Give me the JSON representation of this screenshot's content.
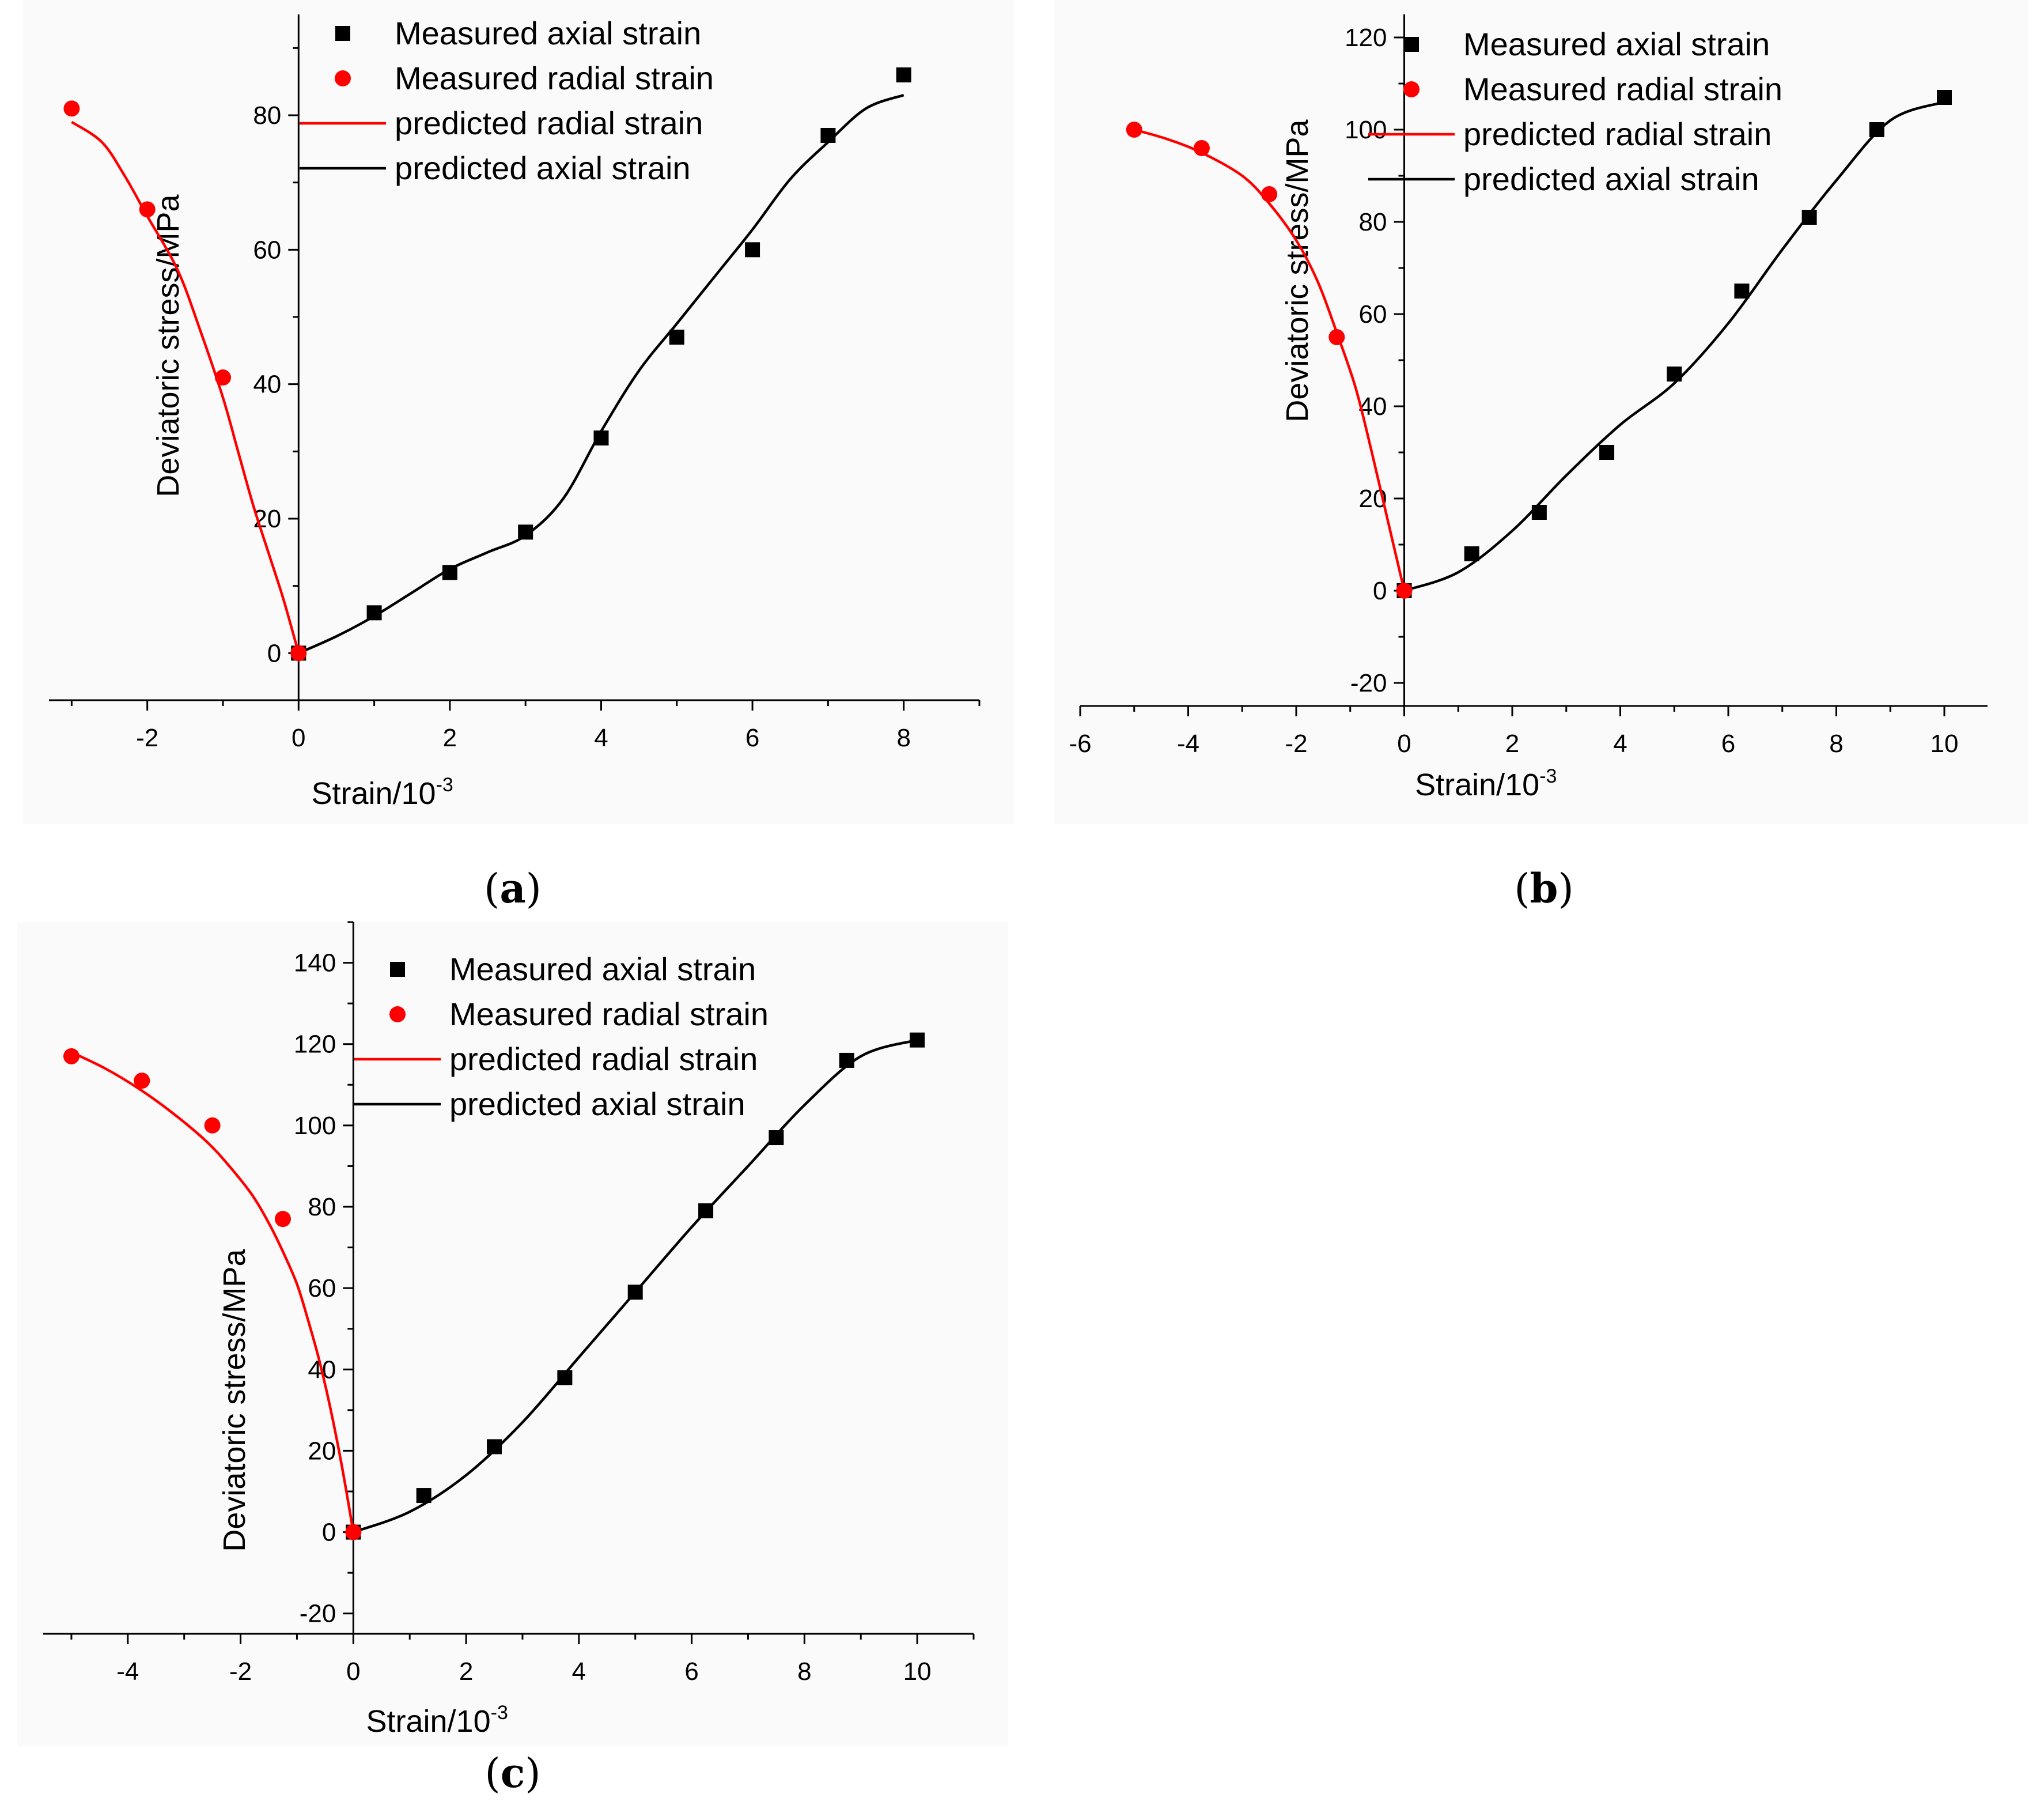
{
  "colors": {
    "axial": "#000000",
    "radial": "#ff0000",
    "text": "#000000",
    "panel_bg": "#fafafa"
  },
  "chart_data": [
    {
      "panel": "a",
      "type": "scatter",
      "caption_letter": "a",
      "xlabel": "Strain/10",
      "xlabel_sup": "-3",
      "ylabel": "Deviatoric stress/MPa",
      "xlim": [
        -3.3,
        9.0
      ],
      "ylim": [
        -7,
        95
      ],
      "xticks": [
        -2,
        0,
        2,
        4,
        6,
        8
      ],
      "yticks": [
        0,
        20,
        40,
        60,
        80
      ],
      "legend": {
        "measured_axial": "Measured axial strain",
        "measured_radial": "Measured radial strain",
        "predicted_radial": "predicted radial strain",
        "predicted_axial": "predicted axial strain"
      },
      "series": [
        {
          "name": "Measured axial strain",
          "kind": "points",
          "marker": "square",
          "x": [
            0,
            1,
            2,
            3,
            4,
            5,
            6,
            7,
            8
          ],
          "y": [
            0,
            6,
            12,
            18,
            32,
            47,
            60,
            77,
            86
          ]
        },
        {
          "name": "Measured radial strain",
          "kind": "points",
          "marker": "circle",
          "x": [
            0,
            -1,
            -2,
            -3
          ],
          "y": [
            0,
            41,
            66,
            81
          ]
        },
        {
          "name": "predicted radial strain",
          "kind": "line",
          "x": [
            0,
            -0.2,
            -0.4,
            -0.6,
            -0.8,
            -1,
            -1.3,
            -1.6,
            -2,
            -2.3,
            -2.6,
            -3
          ],
          "y": [
            0,
            8,
            15,
            22,
            30,
            38,
            48,
            57,
            65,
            71,
            76,
            79
          ]
        },
        {
          "name": "predicted axial strain",
          "kind": "line",
          "x": [
            0,
            0.5,
            1,
            1.5,
            2,
            2.5,
            3,
            3.5,
            4,
            4.5,
            5,
            5.5,
            6,
            6.5,
            7,
            7.5,
            8
          ],
          "y": [
            0,
            2.5,
            5.5,
            9,
            12.5,
            15,
            17.5,
            23,
            33,
            42,
            49,
            56,
            63,
            70.5,
            76,
            81,
            83
          ]
        }
      ]
    },
    {
      "panel": "b",
      "type": "scatter",
      "caption_letter": "b",
      "xlabel": "Strain/10",
      "xlabel_sup": "-3",
      "ylabel": "Deviatoric stress/MPa",
      "xlim": [
        -6.0,
        10.8
      ],
      "ylim": [
        -25,
        125
      ],
      "xticks": [
        -6,
        -4,
        -2,
        0,
        2,
        4,
        6,
        8,
        10
      ],
      "yticks": [
        -20,
        0,
        20,
        40,
        60,
        80,
        100,
        120
      ],
      "legend": {
        "measured_axial": "Measured axial strain",
        "measured_radial": "Measured radial strain",
        "predicted_radial": "predicted radial strain",
        "predicted_axial": "predicted axial strain"
      },
      "series": [
        {
          "name": "Measured axial strain",
          "kind": "points",
          "marker": "square",
          "x": [
            0,
            1.25,
            2.5,
            3.75,
            5,
            6.25,
            7.5,
            8.75,
            10
          ],
          "y": [
            0,
            8,
            17,
            30,
            47,
            65,
            81,
            100,
            107
          ]
        },
        {
          "name": "Measured radial strain",
          "kind": "points",
          "marker": "circle",
          "x": [
            0,
            -1.25,
            -2.5,
            -3.75,
            -5
          ],
          "y": [
            0,
            55,
            86,
            96,
            100
          ]
        },
        {
          "name": "predicted radial strain",
          "kind": "line",
          "x": [
            0,
            -0.3,
            -0.6,
            -0.9,
            -1.25,
            -1.6,
            -2,
            -2.5,
            -3,
            -3.75,
            -4.4,
            -5
          ],
          "y": [
            0,
            15,
            30,
            44,
            56,
            67,
            76,
            84,
            90,
            95,
            98,
            100
          ]
        },
        {
          "name": "predicted axial strain",
          "kind": "line",
          "x": [
            0,
            1,
            2,
            3,
            4,
            5,
            6,
            7,
            8,
            9,
            10
          ],
          "y": [
            0,
            4,
            13,
            25,
            36,
            45,
            58,
            74,
            89,
            102,
            106
          ]
        }
      ]
    },
    {
      "panel": "c",
      "type": "scatter",
      "caption_letter": "c",
      "xlabel": "Strain/10",
      "xlabel_sup": "-3",
      "ylabel": "Deviatoric stress/MPa",
      "xlim": [
        -5.5,
        11.0
      ],
      "ylim": [
        -25,
        150
      ],
      "xticks": [
        -4,
        -2,
        0,
        2,
        4,
        6,
        8,
        10
      ],
      "yticks": [
        -20,
        0,
        20,
        40,
        60,
        80,
        100,
        120,
        140
      ],
      "legend": {
        "measured_axial": "Measured axial strain",
        "measured_radial": "Measured radial strain",
        "predicted_radial": "predicted radial strain",
        "predicted_axial": "predicted axial strain"
      },
      "series": [
        {
          "name": "Measured axial strain",
          "kind": "points",
          "marker": "square",
          "x": [
            0,
            1.25,
            2.5,
            3.75,
            5,
            6.25,
            7.5,
            8.75,
            10
          ],
          "y": [
            0,
            9,
            21,
            38,
            59,
            79,
            97,
            116,
            121
          ]
        },
        {
          "name": "Measured radial strain",
          "kind": "points",
          "marker": "circle",
          "x": [
            0,
            -1.25,
            -2.5,
            -3.75,
            -5
          ],
          "y": [
            0,
            77,
            100,
            111,
            117
          ]
        },
        {
          "name": "predicted radial strain",
          "kind": "line",
          "x": [
            0,
            -0.2,
            -0.4,
            -0.6,
            -0.8,
            -1.0,
            -1.25,
            -1.5,
            -1.8,
            -2.2,
            -2.6,
            -3.2,
            -3.8,
            -4.4,
            -5
          ],
          "y": [
            0,
            16,
            30,
            42,
            52,
            61,
            69,
            76,
            83,
            90,
            96,
            103,
            109,
            114,
            118
          ]
        },
        {
          "name": "predicted axial strain",
          "kind": "line",
          "x": [
            0,
            1,
            2,
            3,
            4,
            5,
            6,
            7,
            8,
            9,
            10
          ],
          "y": [
            0,
            5,
            14,
            27,
            43,
            59,
            75,
            90,
            105,
            117,
            121
          ]
        }
      ]
    }
  ]
}
